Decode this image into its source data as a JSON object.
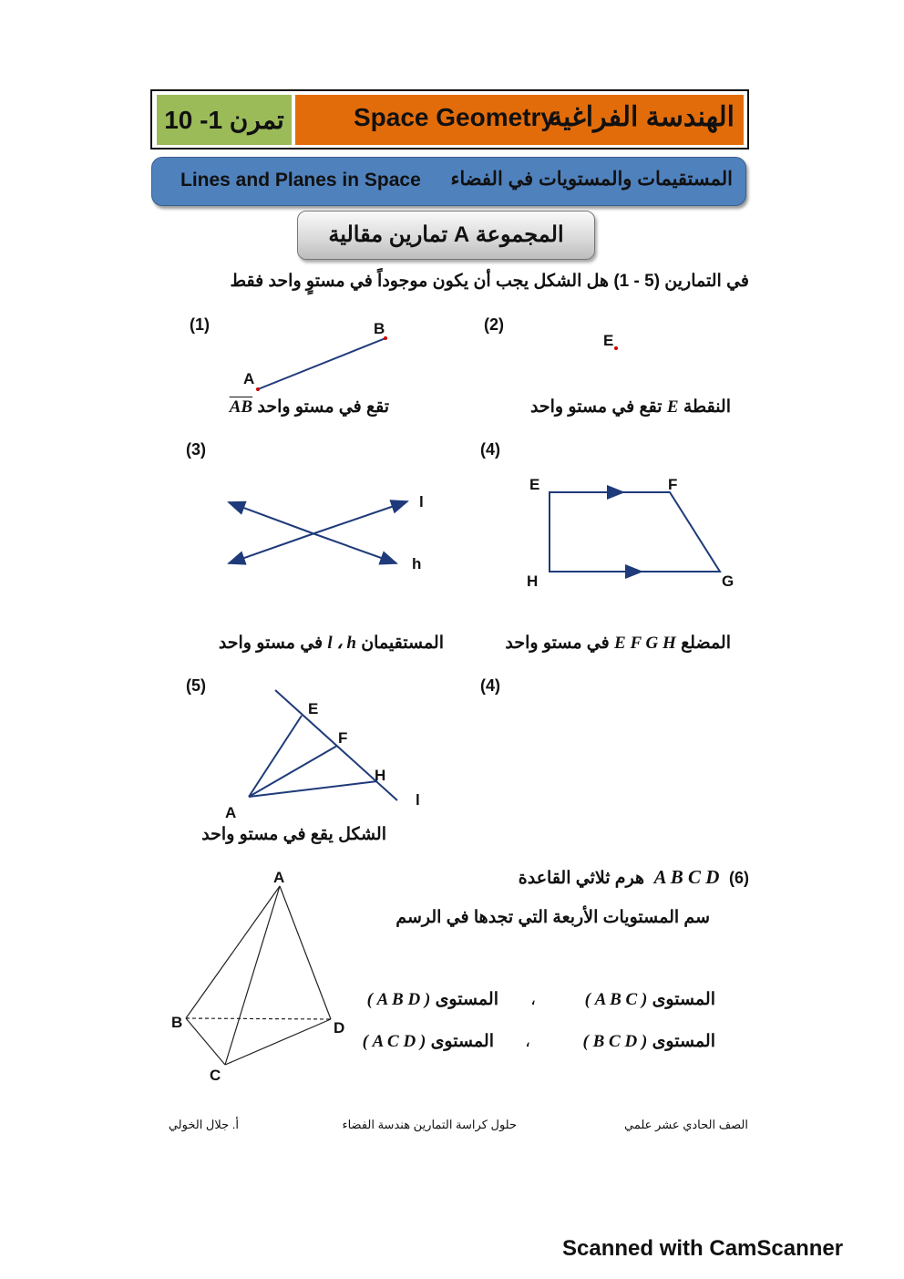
{
  "header": {
    "lesson": "تمرن 1- 10",
    "title_en": "Space Geometry",
    "title_ar": "الهندسة الفراغية"
  },
  "subheader": {
    "en": "Lines and Planes in Space",
    "ar": "المستقيمات والمستويات في الفضاء"
  },
  "group": {
    "ar": "المجموعة  A  تمارين مقالية"
  },
  "instruction": "في التمارين  (5 - 1)  هل الشكل يجب أن يكون موجوداً في مستوٍ واحد فقط",
  "exercises": [
    {
      "num": "(1)",
      "answer_ar": "تقع في مستو واحد",
      "answer_math": "AB",
      "labels": [
        "A",
        "B"
      ]
    },
    {
      "num": "(2)",
      "answer_ar_pre": "النقطة",
      "answer_math": "E",
      "answer_ar_post": "تقع في مستو واحد",
      "labels": [
        "E"
      ]
    },
    {
      "num": "(3)",
      "answer_ar_pre": "المستقيمان",
      "answer_math": "l ، h",
      "answer_ar_post": "في مستو واحد",
      "labels": [
        "l",
        "h"
      ]
    },
    {
      "num": "(4)",
      "answer_ar_pre": "المضلع",
      "answer_math": "E F G H",
      "answer_ar_post": "في مستو واحد",
      "labels": [
        "E",
        "F",
        "G",
        "H"
      ]
    },
    {
      "num": "(5)",
      "answer_ar": "الشكل يقع  في مستو واحد",
      "labels": [
        "E",
        "F",
        "H",
        "A",
        "l"
      ]
    },
    {
      "num": "(4)"
    },
    {
      "num": "(6)",
      "math": "A  B C D",
      "ar": "هرم ثلاثي القاعدة",
      "question": "سم المستويات الأربعة التي تجدها في الرسم",
      "plane_word": "المستوى",
      "planes": [
        "( A B C )",
        "( A B D )",
        "( B C D )",
        "( A C D )"
      ],
      "sep": "،",
      "labels": [
        "A",
        "B",
        "C",
        "D"
      ]
    }
  ],
  "footer": {
    "teacher": "أ. جلال الخولي",
    "book": "حلول كراسة التمارين  هندسة الفضاء",
    "grade": "الصف الحادي عشر علمي"
  },
  "watermark": "Scanned with CamScanner",
  "colors": {
    "green": "#9bbb59",
    "orange": "#e36c0a",
    "blue": "#4f81bd",
    "line": "#1f3a7a"
  }
}
